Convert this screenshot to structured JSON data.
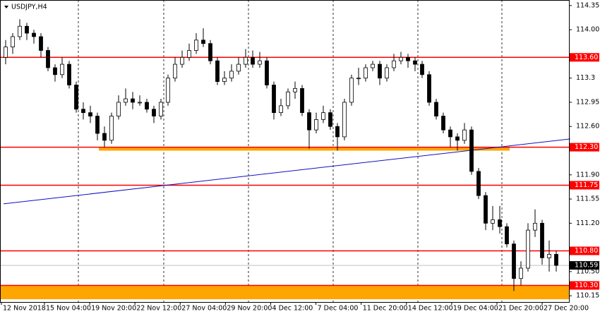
{
  "chart_data": {
    "type": "candlestick",
    "title": "USDJPY,H4",
    "ylim": [
      110.06,
      114.43
    ],
    "yticks": [
      114.35,
      {
        "value": 114,
        "label": "114.00"
      },
      113.3,
      112.95,
      {
        "value": 112.6,
        "label": "112.60"
      },
      {
        "value": 111.9,
        "label": "111.90"
      },
      111.55,
      {
        "value": 111.2,
        "label": "111.20"
      },
      {
        "value": 110.5,
        "label": "110.50"
      },
      110.15
    ],
    "xlabels": [
      "12 Nov 2018",
      "15 Nov 04:00",
      "19 Nov 20:00",
      "22 Nov 12:00",
      "27 Nov 04:00",
      "29 Nov 20:00",
      "4 Dec 12:00",
      "7 Dec 04:00",
      "11 Dec 20:00",
      "14 Dec 12:00",
      "19 Dec 04:00",
      "21 Dec 20:00",
      "27 Dec 20:00"
    ],
    "grid": true,
    "levels": [
      {
        "value": 113.6,
        "label": "113.60"
      },
      {
        "value": 112.3,
        "label": "112.30"
      },
      {
        "value": 111.75,
        "label": "111.75"
      },
      {
        "value": 110.8,
        "label": "110.80"
      },
      {
        "value": 110.3,
        "label": "110.30"
      }
    ],
    "level_color": "#ff0000",
    "current_price": {
      "value": 110.59,
      "label": "110.59"
    },
    "trendline": {
      "start": 111.48,
      "end": 112.42,
      "color": "#1010c0"
    },
    "zones": [
      {
        "from": 110.3,
        "to": 110.1
      },
      {
        "from": 112.3,
        "to": 112.25
      }
    ],
    "zone_color": "#ffa500",
    "candles": [
      [
        113.6,
        113.85,
        113.5,
        113.75
      ],
      [
        113.75,
        113.95,
        113.65,
        113.9
      ],
      [
        113.9,
        114.15,
        113.85,
        114.05
      ],
      [
        114.05,
        114.1,
        113.85,
        113.95
      ],
      [
        113.95,
        114.0,
        113.8,
        113.9
      ],
      [
        113.9,
        113.95,
        113.6,
        113.7
      ],
      [
        113.7,
        113.75,
        113.4,
        113.45
      ],
      [
        113.45,
        113.5,
        113.25,
        113.35
      ],
      [
        113.35,
        113.6,
        113.3,
        113.5
      ],
      [
        113.5,
        113.55,
        113.15,
        113.2
      ],
      [
        113.2,
        113.25,
        112.8,
        112.85
      ],
      [
        112.85,
        112.95,
        112.7,
        112.8
      ],
      [
        112.8,
        112.9,
        112.65,
        112.75
      ],
      [
        112.75,
        112.8,
        112.4,
        112.5
      ],
      [
        112.5,
        112.6,
        112.3,
        112.4
      ],
      [
        112.4,
        112.8,
        112.35,
        112.75
      ],
      [
        112.75,
        113.05,
        112.7,
        112.95
      ],
      [
        112.95,
        113.15,
        112.9,
        113.0
      ],
      [
        113.0,
        113.1,
        112.85,
        112.95
      ],
      [
        112.95,
        113.05,
        112.9,
        112.95
      ],
      [
        112.95,
        113.0,
        112.8,
        112.85
      ],
      [
        112.85,
        112.9,
        112.65,
        112.75
      ],
      [
        112.75,
        113.0,
        112.7,
        112.95
      ],
      [
        112.95,
        113.35,
        112.9,
        113.3
      ],
      [
        113.3,
        113.6,
        113.25,
        113.5
      ],
      [
        113.5,
        113.7,
        113.45,
        113.6
      ],
      [
        113.6,
        113.8,
        113.55,
        113.7
      ],
      [
        113.7,
        113.95,
        113.65,
        113.85
      ],
      [
        113.85,
        114.02,
        113.75,
        113.8
      ],
      [
        113.8,
        113.85,
        113.5,
        113.55
      ],
      [
        113.55,
        113.6,
        113.2,
        113.25
      ],
      [
        113.25,
        113.4,
        113.2,
        113.3
      ],
      [
        113.3,
        113.5,
        113.25,
        113.4
      ],
      [
        113.4,
        113.6,
        113.35,
        113.5
      ],
      [
        113.5,
        113.72,
        113.45,
        113.6
      ],
      [
        113.6,
        113.7,
        113.45,
        113.5
      ],
      [
        113.5,
        113.68,
        113.45,
        113.55
      ],
      [
        113.55,
        113.6,
        113.15,
        113.2
      ],
      [
        113.2,
        113.25,
        112.7,
        112.8
      ],
      [
        112.8,
        113.0,
        112.75,
        112.9
      ],
      [
        112.9,
        113.15,
        112.85,
        113.1
      ],
      [
        113.1,
        113.25,
        113.0,
        113.15
      ],
      [
        113.15,
        113.2,
        112.75,
        112.8
      ],
      [
        112.8,
        112.85,
        112.28,
        112.55
      ],
      [
        112.55,
        112.8,
        112.5,
        112.7
      ],
      [
        112.7,
        112.9,
        112.65,
        112.8
      ],
      [
        112.8,
        112.85,
        112.55,
        112.6
      ],
      [
        112.6,
        112.65,
        112.25,
        112.45
      ],
      [
        112.45,
        113.0,
        112.4,
        112.95
      ],
      [
        112.95,
        113.35,
        112.9,
        113.3
      ],
      [
        113.3,
        113.45,
        113.2,
        113.3
      ],
      [
        113.3,
        113.5,
        113.25,
        113.45
      ],
      [
        113.45,
        113.55,
        113.4,
        113.5
      ],
      [
        113.5,
        113.55,
        113.2,
        113.3
      ],
      [
        113.3,
        113.5,
        113.25,
        113.45
      ],
      [
        113.45,
        113.65,
        113.4,
        113.55
      ],
      [
        113.55,
        113.68,
        113.5,
        113.6
      ],
      [
        113.6,
        113.65,
        113.45,
        113.55
      ],
      [
        113.55,
        113.6,
        113.4,
        113.5
      ],
      [
        113.5,
        113.55,
        113.3,
        113.35
      ],
      [
        113.35,
        113.4,
        112.9,
        112.95
      ],
      [
        112.95,
        113.0,
        112.7,
        112.75
      ],
      [
        112.75,
        112.8,
        112.5,
        112.55
      ],
      [
        112.55,
        112.6,
        112.3,
        112.45
      ],
      [
        112.45,
        112.5,
        112.25,
        112.4
      ],
      [
        112.4,
        112.65,
        112.35,
        112.55
      ],
      [
        112.55,
        112.6,
        111.9,
        111.95
      ],
      [
        111.95,
        112.0,
        111.55,
        111.6
      ],
      [
        111.6,
        111.65,
        111.1,
        111.2
      ],
      [
        111.2,
        111.45,
        111.1,
        111.25
      ],
      [
        111.25,
        111.45,
        111.05,
        111.15
      ],
      [
        111.15,
        111.2,
        110.85,
        110.9
      ],
      [
        110.9,
        110.95,
        110.22,
        110.4
      ],
      [
        110.4,
        110.65,
        110.3,
        110.55
      ],
      [
        110.55,
        111.2,
        110.5,
        111.1
      ],
      [
        111.1,
        111.4,
        111.0,
        111.2
      ],
      [
        111.2,
        111.25,
        110.6,
        110.7
      ],
      [
        110.7,
        110.95,
        110.5,
        110.75
      ],
      [
        110.75,
        110.8,
        110.5,
        110.59
      ]
    ]
  }
}
